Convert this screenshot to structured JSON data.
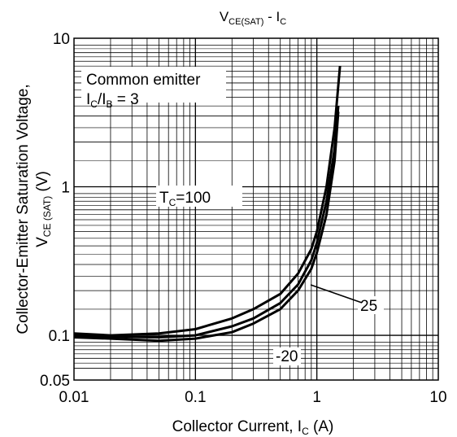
{
  "chart_data": {
    "type": "line",
    "title": {
      "main": "V",
      "sub": "CE(SAT)",
      "mid": " - I",
      "sub2": "C"
    },
    "xlabel": {
      "main": "Collector Current, I",
      "sub": "C",
      "end": " (A)"
    },
    "ylabel": {
      "line1": "Collector-Emitter Saturation Voltage,",
      "main": "V",
      "sub": "CE (SAT)",
      "end": " (V)"
    },
    "x_scale": "log",
    "y_scale": "log",
    "xlim": [
      0.01,
      10
    ],
    "ylim": [
      0.05,
      10
    ],
    "x_ticks": [
      {
        "value": 0.01,
        "label": "0.01"
      },
      {
        "value": 0.1,
        "label": "0.1"
      },
      {
        "value": 1,
        "label": "1"
      },
      {
        "value": 10,
        "label": "10"
      }
    ],
    "y_ticks": [
      {
        "value": 0.05,
        "label": "0.05"
      },
      {
        "value": 0.1,
        "label": "0.1"
      },
      {
        "value": 1,
        "label": "1"
      },
      {
        "value": 10,
        "label": "10"
      }
    ],
    "grid": true,
    "annotations": {
      "condition_line1": "Common emitter",
      "condition_line2": {
        "a": "I",
        "a_sub": "C",
        "slash": "/I",
        "b_sub": "B",
        "rest": " = 3"
      },
      "tc_label": {
        "main": "T",
        "sub": "C",
        "rest": "=100"
      }
    },
    "series": [
      {
        "label": "25",
        "x": [
          0.01,
          0.02,
          0.05,
          0.1,
          0.2,
          0.3,
          0.5,
          0.7,
          0.9,
          1.0,
          1.2,
          1.4,
          1.5
        ],
        "y": [
          0.1,
          0.098,
          0.097,
          0.1,
          0.115,
          0.13,
          0.165,
          0.22,
          0.32,
          0.42,
          0.8,
          1.8,
          3.5
        ]
      },
      {
        "label": "-20",
        "x": [
          0.01,
          0.02,
          0.05,
          0.1,
          0.2,
          0.3,
          0.5,
          0.7,
          0.9,
          1.0,
          1.2,
          1.4,
          1.5
        ],
        "y": [
          0.097,
          0.095,
          0.092,
          0.095,
          0.105,
          0.12,
          0.15,
          0.2,
          0.28,
          0.36,
          0.65,
          1.5,
          3.2
        ]
      },
      {
        "label": "",
        "x": [
          0.01,
          0.02,
          0.05,
          0.1,
          0.2,
          0.3,
          0.5,
          0.7,
          0.9,
          1.0,
          1.2,
          1.4,
          1.55
        ],
        "y": [
          0.103,
          0.1,
          0.103,
          0.11,
          0.13,
          0.15,
          0.19,
          0.26,
          0.38,
          0.5,
          1.0,
          2.5,
          6.5
        ]
      }
    ]
  }
}
